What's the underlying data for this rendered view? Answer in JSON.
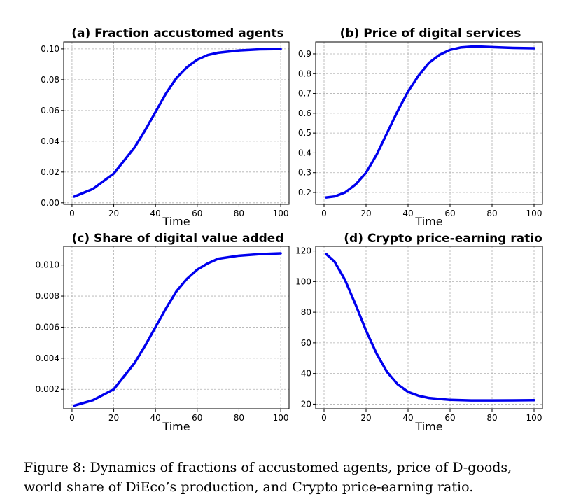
{
  "chart_data": [
    {
      "type": "line",
      "title": "(a) Fraction accustomed agents",
      "xlabel": "Time",
      "ylabel": "",
      "xlim": [
        -4,
        104
      ],
      "ylim": [
        -0.001,
        0.1045
      ],
      "xticks": [
        0,
        20,
        40,
        60,
        80,
        100
      ],
      "xtick_labels": [
        "0",
        "20",
        "40",
        "60",
        "80",
        "100"
      ],
      "yticks": [
        0,
        0.02,
        0.04,
        0.06,
        0.08,
        0.1
      ],
      "ytick_labels": [
        "0.00",
        "0.02",
        "0.04",
        "0.06",
        "0.08",
        "0.10"
      ],
      "grid": true,
      "series": [
        {
          "name": "fraction",
          "color": "#0000ee",
          "x": [
            1,
            10,
            20,
            30,
            35,
            40,
            45,
            50,
            55,
            60,
            65,
            70,
            80,
            90,
            100
          ],
          "y": [
            0.004,
            0.009,
            0.019,
            0.036,
            0.047,
            0.059,
            0.071,
            0.081,
            0.088,
            0.093,
            0.096,
            0.0975,
            0.099,
            0.0997,
            0.0999
          ]
        }
      ]
    },
    {
      "type": "line",
      "title": "(b) Price of digital services",
      "xlabel": "Time",
      "ylabel": "",
      "xlim": [
        -4,
        104
      ],
      "ylim": [
        0.14,
        0.96
      ],
      "xticks": [
        0,
        20,
        40,
        60,
        80,
        100
      ],
      "xtick_labels": [
        "0",
        "20",
        "40",
        "60",
        "80",
        "100"
      ],
      "yticks": [
        0.2,
        0.3,
        0.4,
        0.5,
        0.6,
        0.7,
        0.8,
        0.9
      ],
      "ytick_labels": [
        "0.2",
        "0.3",
        "0.4",
        "0.5",
        "0.6",
        "0.7",
        "0.8",
        "0.9"
      ],
      "grid": true,
      "series": [
        {
          "name": "price",
          "color": "#0000ee",
          "x": [
            1,
            5,
            10,
            15,
            20,
            25,
            30,
            35,
            40,
            45,
            50,
            55,
            60,
            65,
            70,
            75,
            80,
            90,
            100
          ],
          "y": [
            0.175,
            0.18,
            0.2,
            0.24,
            0.3,
            0.39,
            0.5,
            0.61,
            0.71,
            0.79,
            0.855,
            0.895,
            0.92,
            0.932,
            0.936,
            0.936,
            0.934,
            0.93,
            0.928
          ]
        }
      ]
    },
    {
      "type": "line",
      "title": "(c) Share of digital value added",
      "xlabel": "Time",
      "ylabel": "",
      "xlim": [
        -4,
        104
      ],
      "ylim": [
        0.00075,
        0.0112
      ],
      "xticks": [
        0,
        20,
        40,
        60,
        80,
        100
      ],
      "xtick_labels": [
        "0",
        "20",
        "40",
        "60",
        "80",
        "100"
      ],
      "yticks": [
        0.002,
        0.004,
        0.006,
        0.008,
        0.01
      ],
      "ytick_labels": [
        "0.002",
        "0.004",
        "0.006",
        "0.008",
        "0.010"
      ],
      "grid": true,
      "series": [
        {
          "name": "share",
          "color": "#0000ee",
          "x": [
            1,
            10,
            20,
            30,
            35,
            40,
            45,
            50,
            55,
            60,
            65,
            70,
            80,
            90,
            100
          ],
          "y": [
            0.00095,
            0.0013,
            0.002,
            0.0037,
            0.0048,
            0.006,
            0.0072,
            0.0083,
            0.0091,
            0.0097,
            0.0101,
            0.0104,
            0.0106,
            0.0107,
            0.01075
          ]
        }
      ]
    },
    {
      "type": "line",
      "title": "(d) Crypto price-earning ratio",
      "xlabel": "Time",
      "ylabel": "",
      "xlim": [
        -4,
        104
      ],
      "ylim": [
        17,
        123
      ],
      "xticks": [
        0,
        20,
        40,
        60,
        80,
        100
      ],
      "xtick_labels": [
        "0",
        "20",
        "40",
        "60",
        "80",
        "100"
      ],
      "yticks": [
        20,
        40,
        60,
        80,
        100,
        120
      ],
      "ytick_labels": [
        "20",
        "40",
        "60",
        "80",
        "100",
        "120"
      ],
      "grid": true,
      "series": [
        {
          "name": "pe_ratio",
          "color": "#0000ee",
          "x": [
            1,
            5,
            10,
            15,
            20,
            25,
            30,
            35,
            40,
            45,
            50,
            60,
            70,
            80,
            90,
            100
          ],
          "y": [
            118,
            113,
            101,
            85,
            68,
            53,
            41,
            33,
            28,
            25.5,
            24,
            22.8,
            22.4,
            22.4,
            22.5,
            22.6
          ]
        }
      ]
    }
  ],
  "caption": {
    "line1": "Figure 8:  Dynamics of fractions of accustomed agents, price of D-goods,",
    "line2": "world share of DiEco’s production, and Crypto price-earning ratio."
  }
}
